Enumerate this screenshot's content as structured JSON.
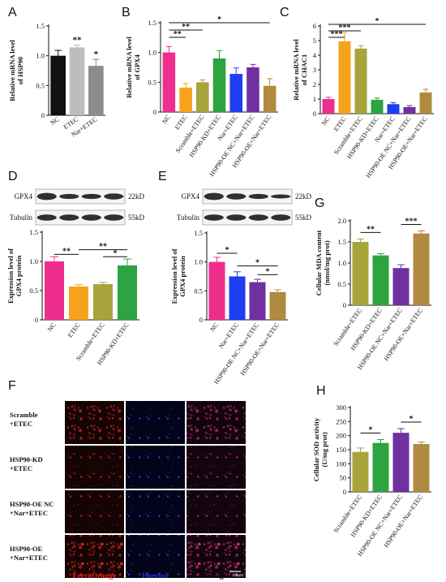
{
  "panels": {
    "A": "A",
    "B": "B",
    "C": "C",
    "D": "D",
    "E": "E",
    "F": "F",
    "G": "G",
    "H": "H"
  },
  "colors": {
    "black": "#111111",
    "gray": "#8c8c8c",
    "pink": "#ee2e8c",
    "orange": "#f7a21b",
    "olive": "#a6a43a",
    "green": "#2da341",
    "blue": "#1f3df2",
    "purple": "#7030a0",
    "brown": "#b08a3e",
    "ferro": "#e8231b",
    "hoechst": "#2233cc"
  },
  "blots": {
    "D": {
      "bands": [
        "GPX4",
        "Tubulin"
      ],
      "sizes": [
        "22kD",
        "55kD"
      ]
    },
    "E": {
      "bands": [
        "GPX4",
        "Tubulin"
      ],
      "sizes": [
        "22kD",
        "55kD"
      ]
    }
  },
  "microscopy": {
    "rows": [
      "Scramble\n+ETEC",
      "HSP90-KD\n+ETEC",
      "HSP90-OE NC\n+Nar+ETEC",
      "HSP90-OE\n+Nar+ETEC"
    ],
    "columns": [
      "FerroOrange",
      "Hoechst",
      "Merge"
    ],
    "scalebar": "100μm"
  },
  "chart_data": [
    {
      "panel": "A",
      "type": "bar",
      "categories": [
        "NC",
        "ETEC",
        "Nar+ETEC"
      ],
      "values": [
        1.0,
        1.14,
        0.83
      ],
      "errors": [
        0.09,
        0.04,
        0.11
      ],
      "colors": [
        "#111111",
        "#bdbdbd",
        "#8c8c8c"
      ],
      "ylabel": "Relative mRNA level of HSP90",
      "ylim": [
        0,
        1.5
      ],
      "yticks": [
        0,
        0.5,
        1.0,
        1.5
      ],
      "annotations": [
        {
          "index": 1,
          "text": "**"
        },
        {
          "index": 2,
          "text": "*"
        }
      ],
      "brackets": []
    },
    {
      "panel": "B",
      "type": "bar",
      "categories": [
        "NC",
        "ETEC",
        "Scramble+ETEC",
        "HSP90-KD+ETEC",
        "Nar+ETEC",
        "HSP90-OE NC+Nar+ETEC",
        "HSP90-OE+Nar+ETEC"
      ],
      "values": [
        1.0,
        0.41,
        0.5,
        0.9,
        0.64,
        0.75,
        0.44
      ],
      "errors": [
        0.1,
        0.07,
        0.04,
        0.13,
        0.1,
        0.05,
        0.12
      ],
      "colors": [
        "#ee2e8c",
        "#f7a21b",
        "#a6a43a",
        "#2da341",
        "#1f3df2",
        "#7030a0",
        "#b08a3e"
      ],
      "ylabel": "Relative mRNA level of GPX4",
      "ylim": [
        0,
        1.5
      ],
      "yticks": [
        0,
        0.5,
        1.0,
        1.5
      ],
      "annotations": [],
      "brackets": [
        {
          "from": 0,
          "to": 1,
          "text": "**"
        },
        {
          "from": 0,
          "to": 2,
          "text": "**"
        },
        {
          "from": 0,
          "to": 6,
          "text": "*"
        }
      ]
    },
    {
      "panel": "C",
      "type": "bar",
      "categories": [
        "NC",
        "ETEC",
        "Scramble+ETEC",
        "HSP90-KD+ETEC",
        "Nar+ETEC",
        "HSP90-OE NC+Nar+ETEC",
        "HSP90-OE+Nar+ETEC"
      ],
      "values": [
        1.0,
        4.95,
        4.45,
        0.95,
        0.65,
        0.45,
        1.45
      ],
      "errors": [
        0.12,
        0.6,
        0.2,
        0.12,
        0.1,
        0.1,
        0.22
      ],
      "colors": [
        "#ee2e8c",
        "#f7a21b",
        "#a6a43a",
        "#2da341",
        "#1f3df2",
        "#7030a0",
        "#b08a3e"
      ],
      "ylabel": "Relative mRNA level of CHAC1",
      "ylim": [
        0,
        6
      ],
      "yticks": [
        0,
        1,
        2,
        3,
        4,
        5,
        6
      ],
      "annotations": [],
      "brackets": [
        {
          "from": 0,
          "to": 1,
          "text": "***"
        },
        {
          "from": 0,
          "to": 2,
          "text": "***"
        },
        {
          "from": 0,
          "to": 6,
          "text": "*"
        }
      ]
    },
    {
      "panel": "D",
      "type": "bar",
      "categories": [
        "NC",
        "ETEC",
        "Scramble+ETEC",
        "HSP90-KD+ETEC"
      ],
      "values": [
        1.0,
        0.57,
        0.61,
        0.93
      ],
      "errors": [
        0.08,
        0.03,
        0.03,
        0.11
      ],
      "colors": [
        "#ee2e8c",
        "#f7a21b",
        "#a6a43a",
        "#2da341"
      ],
      "ylabel": "Expression level of GPX4 protein",
      "ylim": [
        0,
        1.5
      ],
      "yticks": [
        0,
        0.5,
        1.0,
        1.5
      ],
      "annotations": [],
      "brackets": [
        {
          "from": 0,
          "to": 1,
          "text": "**"
        },
        {
          "from": 1,
          "to": 3,
          "text": "**"
        },
        {
          "from": 2,
          "to": 3,
          "text": "*"
        }
      ]
    },
    {
      "panel": "E",
      "type": "bar",
      "categories": [
        "NC",
        "Nar+ETEC",
        "HSP90-OE NC+Nar+ETEC",
        "HSP90-OE+Nar+ETEC"
      ],
      "values": [
        1.0,
        0.75,
        0.65,
        0.48
      ],
      "errors": [
        0.08,
        0.08,
        0.05,
        0.04
      ],
      "colors": [
        "#ee2e8c",
        "#1f3df2",
        "#7030a0",
        "#b08a3e"
      ],
      "ylabel": "Expression level of GPX4 protein",
      "ylim": [
        0,
        1.5
      ],
      "yticks": [
        0,
        0.5,
        1.0,
        1.5
      ],
      "annotations": [],
      "brackets": [
        {
          "from": 0,
          "to": 1,
          "text": "*"
        },
        {
          "from": 1,
          "to": 3,
          "text": "*"
        },
        {
          "from": 2,
          "to": 3,
          "text": "*"
        }
      ]
    },
    {
      "panel": "G",
      "type": "bar",
      "categories": [
        "Scramble+ETEC",
        "HSP90-KD+ETEC",
        "HSP90-OE NC+Nar+ETEC",
        "HSP90-OE+Nar+ETEC"
      ],
      "values": [
        1.5,
        1.18,
        0.88,
        1.7
      ],
      "errors": [
        0.07,
        0.04,
        0.08,
        0.06
      ],
      "colors": [
        "#a6a43a",
        "#2da341",
        "#7030a0",
        "#b08a3e"
      ],
      "ylabel": "Cellular MDA content (nmol/mg prot)",
      "ylim": [
        0,
        2.0
      ],
      "yticks": [
        0,
        0.5,
        1.0,
        1.5,
        2.0
      ],
      "annotations": [],
      "brackets": [
        {
          "from": 0,
          "to": 1,
          "text": "**"
        },
        {
          "from": 2,
          "to": 3,
          "text": "***"
        }
      ]
    },
    {
      "panel": "H",
      "type": "bar",
      "categories": [
        "Scramble+ETEC",
        "HSP90-KD+ETEC",
        "HSP90-OE NC+Nar+ETEC",
        "HSP90-OE+Nar+ETEC"
      ],
      "values": [
        142,
        174,
        210,
        170
      ],
      "errors": [
        14,
        12,
        15,
        7
      ],
      "colors": [
        "#a6a43a",
        "#2da341",
        "#7030a0",
        "#b08a3e"
      ],
      "ylabel": "Cellular SOD activity (U/mg prot)",
      "ylim": [
        0,
        300
      ],
      "yticks": [
        0,
        50,
        100,
        150,
        200,
        250,
        300
      ],
      "annotations": [],
      "brackets": [
        {
          "from": 0,
          "to": 1,
          "text": "*"
        },
        {
          "from": 2,
          "to": 3,
          "text": "*"
        }
      ]
    }
  ]
}
